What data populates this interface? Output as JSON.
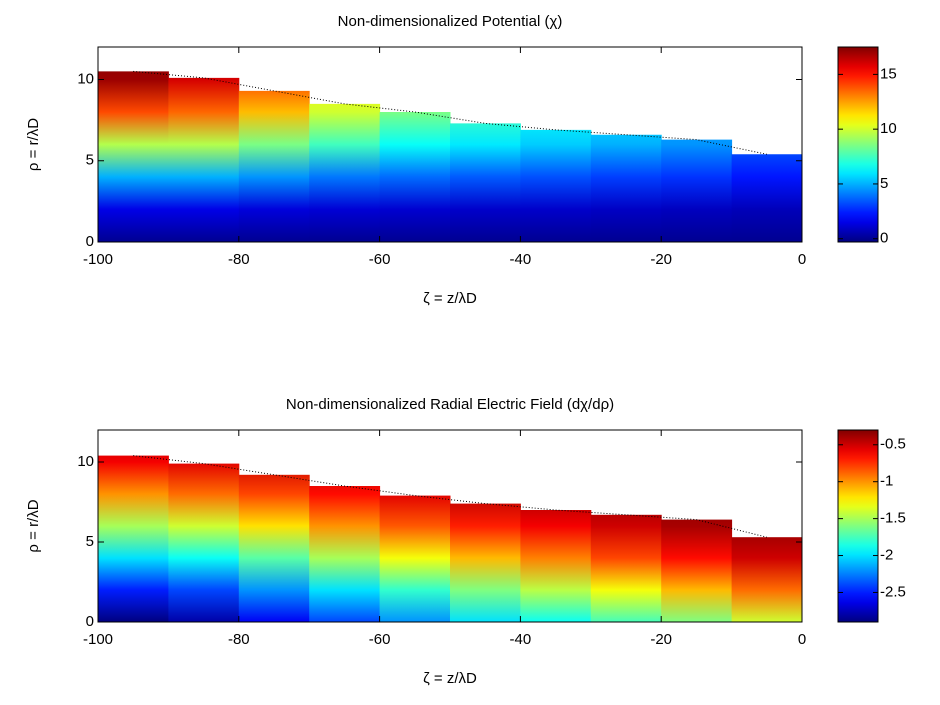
{
  "chart_data": [
    {
      "type": "heatmap",
      "title": "Non-dimensionalized Potential (χ)",
      "xlabel": "ζ = z/λD",
      "ylabel": "ρ = r/λD",
      "xlim": [
        -100,
        0
      ],
      "xticks": [
        -100,
        -80,
        -60,
        -40,
        -20,
        0
      ],
      "ylim": [
        0,
        12
      ],
      "yticks": [
        0,
        5,
        10
      ],
      "colormap": "jet",
      "clim": [
        -0.3,
        17.5
      ],
      "cticks": [
        0,
        5,
        10,
        15
      ],
      "x": [
        -95,
        -85,
        -75,
        -65,
        -55,
        -45,
        -35,
        -25,
        -15,
        -5
      ],
      "boundary": [
        10.5,
        10.1,
        9.3,
        8.5,
        8.0,
        7.3,
        6.9,
        6.6,
        6.3,
        5.4
      ],
      "rho": [
        0,
        2,
        4,
        6,
        8,
        10,
        12
      ],
      "z": [
        [
          0,
          1.5,
          5,
          9.5,
          14,
          17,
          17.5
        ],
        [
          0,
          1.5,
          5,
          9.5,
          13.5,
          16,
          16.5
        ],
        [
          0,
          1.3,
          4.5,
          8.5,
          12,
          14,
          14
        ],
        [
          0,
          1.2,
          4,
          7.5,
          10,
          11,
          11
        ],
        [
          0,
          1.1,
          3.8,
          6.5,
          8.5,
          9,
          9
        ],
        [
          0,
          1,
          3.5,
          6,
          7.5,
          8,
          8
        ],
        [
          0,
          1,
          3.3,
          5.5,
          6.5,
          7,
          7
        ],
        [
          0,
          0.9,
          3,
          5,
          6,
          6,
          6
        ],
        [
          0,
          0.8,
          2.8,
          4.5,
          5,
          5,
          5
        ],
        [
          0,
          0.7,
          2.3,
          3.5,
          4,
          4,
          4
        ]
      ]
    },
    {
      "type": "heatmap",
      "title": "Non-dimensionalized Radial Electric Field (dχ/dρ)",
      "xlabel": "ζ = z/λD",
      "ylabel": "ρ = r/λD",
      "xlim": [
        -100,
        0
      ],
      "xticks": [
        -100,
        -80,
        -60,
        -40,
        -20,
        0
      ],
      "ylim": [
        0,
        12
      ],
      "yticks": [
        0,
        5,
        10
      ],
      "colormap": "jet",
      "clim": [
        -2.9,
        -0.3
      ],
      "cticks": [
        -2.5,
        -2,
        -1.5,
        -1,
        -0.5
      ],
      "x": [
        -95,
        -85,
        -75,
        -65,
        -55,
        -45,
        -35,
        -25,
        -15,
        -5
      ],
      "boundary": [
        10.4,
        9.9,
        9.2,
        8.5,
        7.9,
        7.4,
        7.0,
        6.7,
        6.4,
        5.3
      ],
      "rho": [
        0,
        2,
        4,
        6,
        8,
        10,
        12
      ],
      "z": [
        [
          -2.9,
          -2.5,
          -2.0,
          -1.5,
          -1.0,
          -0.6,
          -0.4
        ],
        [
          -2.8,
          -2.4,
          -1.9,
          -1.4,
          -0.9,
          -0.55,
          -0.4
        ],
        [
          -2.6,
          -2.2,
          -1.7,
          -1.2,
          -0.8,
          -0.5,
          -0.4
        ],
        [
          -2.4,
          -2.0,
          -1.5,
          -1.0,
          -0.65,
          -0.45,
          -0.4
        ],
        [
          -2.2,
          -1.8,
          -1.3,
          -0.85,
          -0.55,
          -0.4,
          -0.4
        ],
        [
          -2.0,
          -1.6,
          -1.1,
          -0.7,
          -0.45,
          -0.35,
          -0.35
        ],
        [
          -1.9,
          -1.45,
          -0.95,
          -0.6,
          -0.4,
          -0.35,
          -0.35
        ],
        [
          -1.75,
          -1.3,
          -0.8,
          -0.5,
          -0.35,
          -0.35,
          -0.35
        ],
        [
          -1.6,
          -1.1,
          -0.65,
          -0.4,
          -0.32,
          -0.32,
          -0.32
        ],
        [
          -1.4,
          -0.9,
          -0.5,
          -0.35,
          -0.32,
          -0.32,
          -0.32
        ]
      ]
    }
  ]
}
